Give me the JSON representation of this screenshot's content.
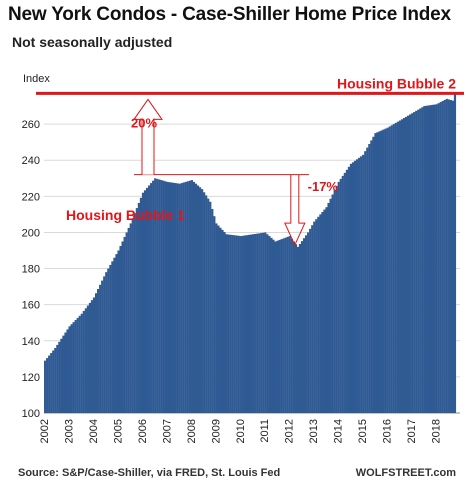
{
  "header": {
    "title": "New York Condos - Case-Shiller Home Price Index",
    "subtitle": "Not seasonally adjusted"
  },
  "footer": {
    "source": "Source: S&P/Case-Shiller, via FRED,  St. Louis Fed",
    "brand": "WOLFSTREET.com"
  },
  "colors": {
    "bars": "#2f5a93",
    "annotation": "#e0161b"
  },
  "chart_data": {
    "type": "bar",
    "title": "New York Condos - Case-Shiller Home Price Index",
    "subtitle": "Not seasonally adjusted",
    "ylabel": "Index",
    "ylim": [
      100,
      280
    ],
    "yticks": [
      100,
      120,
      140,
      160,
      180,
      200,
      220,
      240,
      260
    ],
    "xlim": [
      2002.0,
      2019.0
    ],
    "xticks": [
      "2002",
      "2003",
      "2004",
      "2005",
      "2006",
      "2007",
      "2008",
      "2009",
      "2010",
      "2011",
      "2012",
      "2013",
      "2014",
      "2015",
      "2016",
      "2017",
      "2018"
    ],
    "frequency": "monthly",
    "grid": "horizontal",
    "series": [
      {
        "start": "2002-01",
        "anchors": [
          [
            "2002-01",
            129
          ],
          [
            "2002-06",
            136
          ],
          [
            "2003-01",
            148
          ],
          [
            "2003-07",
            155
          ],
          [
            "2004-01",
            164
          ],
          [
            "2004-07",
            178
          ],
          [
            "2005-01",
            190
          ],
          [
            "2005-07",
            205
          ],
          [
            "2006-01",
            222
          ],
          [
            "2006-07",
            230
          ],
          [
            "2007-01",
            228
          ],
          [
            "2007-07",
            227
          ],
          [
            "2008-01",
            229
          ],
          [
            "2008-06",
            224
          ],
          [
            "2008-10",
            217
          ],
          [
            "2009-01",
            205
          ],
          [
            "2009-06",
            199
          ],
          [
            "2010-01",
            198
          ],
          [
            "2010-07",
            199
          ],
          [
            "2011-01",
            200
          ],
          [
            "2011-06",
            195
          ],
          [
            "2012-01",
            198
          ],
          [
            "2012-05",
            192
          ],
          [
            "2012-10",
            200
          ],
          [
            "2013-01",
            206
          ],
          [
            "2013-07",
            214
          ],
          [
            "2014-01",
            228
          ],
          [
            "2014-07",
            238
          ],
          [
            "2015-01",
            243
          ],
          [
            "2015-07",
            255
          ],
          [
            "2016-01",
            258
          ],
          [
            "2016-07",
            262
          ],
          [
            "2017-01",
            266
          ],
          [
            "2017-07",
            270
          ],
          [
            "2018-01",
            271
          ],
          [
            "2018-06",
            274
          ],
          [
            "2018-09",
            273
          ],
          [
            "2018-10",
            277
          ]
        ]
      }
    ],
    "annotations": [
      {
        "text": "Housing Bubble 2",
        "type": "reference-line",
        "y": 277
      },
      {
        "text": "20%",
        "type": "up-arrow",
        "x": "2006-04",
        "from": 232,
        "to": 277
      },
      {
        "text": "-17%",
        "type": "down-arrow",
        "x": "2012-04",
        "from": 232,
        "to": 193
      },
      {
        "text": "Housing Bubble 1",
        "type": "label"
      },
      {
        "text": "",
        "type": "reference-line",
        "y": 232,
        "x_from": "2006-04",
        "x_to": "2012-11"
      }
    ]
  }
}
